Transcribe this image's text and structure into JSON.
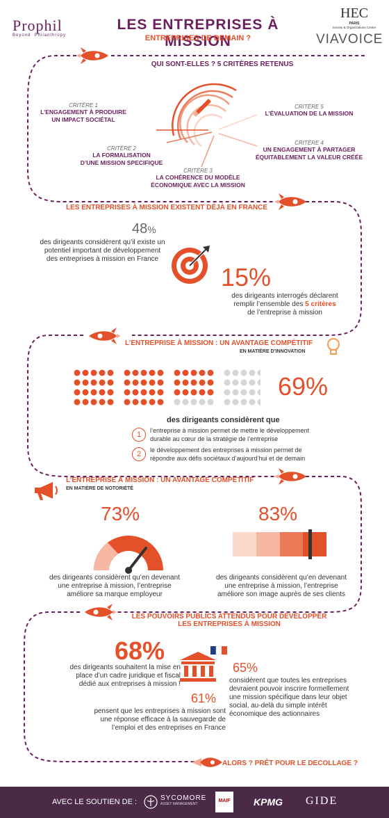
{
  "header": {
    "logo_left": "Prophil",
    "logo_left_sub1": "Beyond",
    "logo_left_sub2": "Philanthropy",
    "title": "LES ENTREPRISES À MISSION",
    "subtitle": "ENTREPRISES DE DEMAIN ?",
    "logo_hec": "HEC",
    "logo_hec_sub1": "PARIS",
    "logo_hec_sub2": "Society & Organizations Center",
    "logo_viavoice": "VIAVOICE"
  },
  "section1": {
    "heading": "QUI SONT-ELLES ? 5 CRITÈRES RETENUS",
    "criteria": [
      {
        "label": "CRITÈRE 1",
        "lines": [
          "L’ENGAGEMENT À PRODUIRE",
          "UN IMPACT SOCIÉTAL"
        ]
      },
      {
        "label": "CRITÈRE 2",
        "lines": [
          "LA FORMALISATION",
          "D’UNE MISSION SPECIFIQUE"
        ]
      },
      {
        "label": "CRITÈRE 3",
        "lines": [
          "LA COHÉRENCE DU MODÈLE",
          "ÉCONOMIQUE AVEC LA MISSION"
        ]
      },
      {
        "label": "CRITÈRE 4",
        "lines": [
          "UN ENGAGEMENT À PARTAGER",
          "ÉQUITABLEMENT LA VALEUR CRÉÉE"
        ]
      },
      {
        "label": "CRITÈRE 5",
        "lines": [
          "L’ÉVALUATION DE LA MISSION"
        ]
      }
    ]
  },
  "section2": {
    "heading": "LES ENTREPRISES À MISSION EXISTENT DÉJÀ EN FRANCE",
    "stat1_value": "48",
    "stat1_unit": "%",
    "stat1_lines": [
      "des dirigeants considèrent qu’il existe un",
      "potentiel important de développement",
      "des entreprises à mission en France"
    ],
    "stat2_value": "15%",
    "stat2_line1": "des dirigeants interrogés déclarent",
    "stat2_line2_pre": "remplir l’ensemble des ",
    "stat2_line2_em": "5 critères",
    "stat2_line3": "de l’entreprise à mission"
  },
  "section3": {
    "heading": "L’ENTREPRISE À MISSION : UN AVANTAGE COMPÉTITIF",
    "subheading": "EN MATIÈRE D’INNOVATION",
    "stat_value": "69%",
    "dots_filled_fraction": 0.69,
    "lead": "des dirigeants considèrent que",
    "items": [
      {
        "num": "1",
        "lines": [
          "l’entreprise à mission permet de mettre le développement",
          "durable au cœur de la stratégie de l’entreprise"
        ]
      },
      {
        "num": "2",
        "lines": [
          "le développement des entreprises à mission permet de",
          "répondre aux défis sociétaux d’aujourd’hui et de demain"
        ]
      }
    ]
  },
  "section4": {
    "heading": "L’ENTREPRISE À MISSION : UN AVANTAGE COMPÉTITIF",
    "subheading": "EN MATIÈRE DE NOTORIÉTÉ",
    "stat1_value": "73%",
    "stat1_lines": [
      "des dirigeants considèrent qu’en devenant",
      "une entreprise à mission, l’entreprise",
      "améliore sa marque employeur"
    ],
    "stat2_value": "83%",
    "stat2_lines": [
      "des dirigeants considèrent qu’en devenant",
      "une entreprise à mission, l’entreprise",
      "améliore son image auprès de ses clients"
    ]
  },
  "section5": {
    "heading_line1": "LES POUVOIRS PUBLICS ATTENDUS POUR DÉVELOPPER",
    "heading_line2": "LES ENTREPRISES À MISSION",
    "stat1_value": "68%",
    "stat1_lines": [
      "des dirigeants souhaitent la mise en",
      "place d’un cadre juridique et fiscal",
      "dédié aux entreprises à mission !"
    ],
    "stat2_value": "65%",
    "stat2_lines": [
      "considèrent que toutes les entreprises",
      "devraient pouvoir inscrire formellement",
      "une mission spécifique dans leur objet",
      "social, au-delà du simple intérêt",
      "économique des actionnaires"
    ],
    "stat3_value": "61%",
    "stat3_lines": [
      "pensent que les entreprises à mission sont",
      "une réponse efficace à la sauvegarde de",
      "l’emploi et des entreprises en France"
    ]
  },
  "closing": "ALORS ? PRÊT POUR LE DECOLLAGE ?",
  "footer": {
    "label": "AVEC LE SOUTIEN DE :",
    "sponsors": [
      "SYCOMORE",
      "MAIF",
      "KPMG",
      "GIDE"
    ],
    "sycomore_sub": "ASSET MANAGEMENT"
  },
  "colors": {
    "purple": "#6b1f5e",
    "orange": "#e4502a",
    "light_orange": "#f6c9b8",
    "grey_dot": "#d6d6d6",
    "footer_bg": "#4a2a46"
  }
}
